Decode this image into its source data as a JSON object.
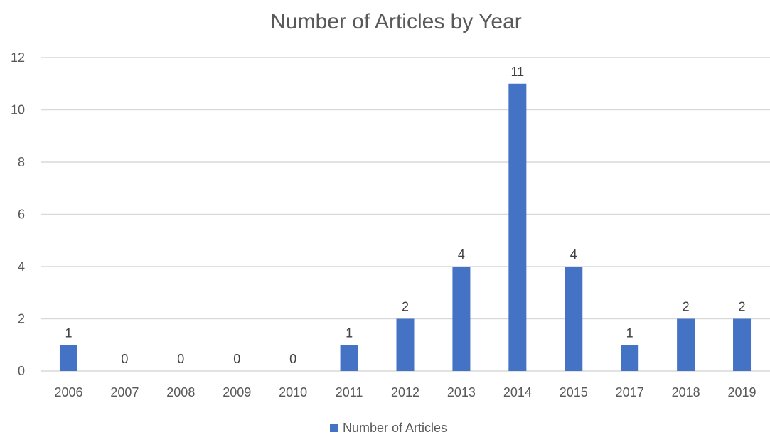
{
  "chart_data": {
    "type": "bar",
    "title": "Number of Articles by Year",
    "xlabel": "",
    "ylabel": "",
    "categories": [
      "2006",
      "2007",
      "2008",
      "2009",
      "2010",
      "2011",
      "2012",
      "2013",
      "2014",
      "2015",
      "2017",
      "2018",
      "2019"
    ],
    "series": [
      {
        "name": "Number of Articles",
        "values": [
          1,
          0,
          0,
          0,
          0,
          1,
          2,
          4,
          11,
          4,
          1,
          2,
          2
        ],
        "color": "#4472c4"
      }
    ],
    "ylim": [
      0,
      12
    ],
    "yticks": [
      0,
      2,
      4,
      6,
      8,
      10,
      12
    ],
    "grid": true,
    "data_labels": true,
    "legend_position": "bottom"
  }
}
